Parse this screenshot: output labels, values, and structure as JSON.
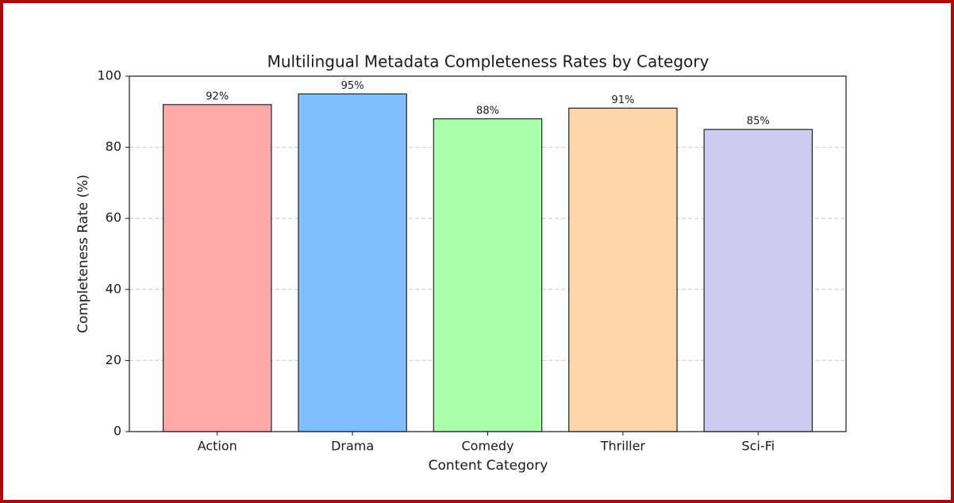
{
  "chart_data": {
    "type": "bar",
    "title": "Multilingual Metadata Completeness Rates by Category",
    "x_label": "Content Category",
    "y_label": "Completeness Rate (%)",
    "categories": [
      "Action",
      "Drama",
      "Comedy",
      "Thriller",
      "Sci-Fi"
    ],
    "values": [
      92,
      95,
      88,
      91,
      85
    ],
    "value_labels": [
      "92%",
      "95%",
      "88%",
      "91%",
      "85%"
    ],
    "colors": [
      "#ffaaaa",
      "#80bfff",
      "#aaffaa",
      "#ffd5aa",
      "#ccccf0"
    ],
    "ylim": [
      0,
      100
    ],
    "yticks": [
      0,
      20,
      40,
      60,
      80,
      100
    ],
    "grid": true
  }
}
